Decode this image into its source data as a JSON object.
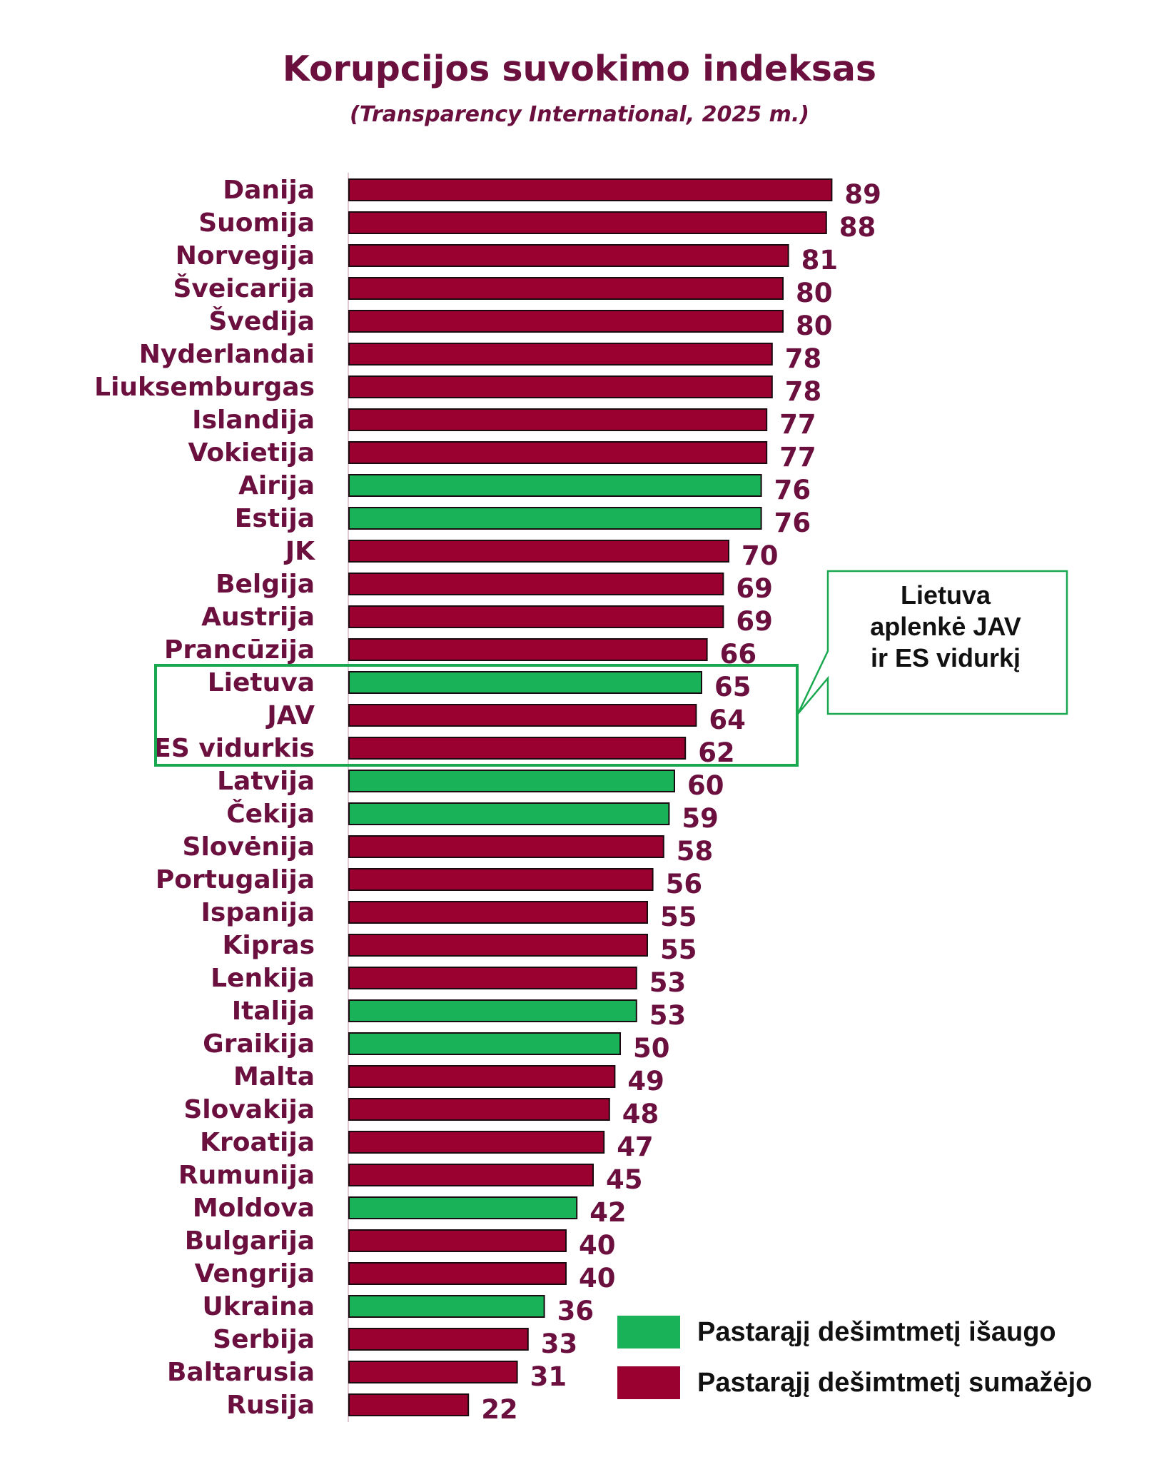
{
  "title": "Korupcijos suvokimo indeksas",
  "subtitle": "(Transparency International, 2025 m.)",
  "colors": {
    "increased": "#19b258",
    "decreased": "#9a0030",
    "text": "#6b0f3e",
    "highlight_border": "#19a84f"
  },
  "chart_data": {
    "type": "bar",
    "orientation": "horizontal",
    "title": "Korupcijos suvokimo indeksas",
    "subtitle": "(Transparency International, 2025 m.)",
    "xlabel": "",
    "ylabel": "",
    "xlim": [
      0,
      100
    ],
    "grid": false,
    "legend_position": "bottom-right",
    "categories": [
      "Danija",
      "Suomija",
      "Norvegija",
      "Šveicarija",
      "Švedija",
      "Nyderlandai",
      "Liuksemburgas",
      "Islandija",
      "Vokietija",
      "Airija",
      "Estija",
      "JK",
      "Belgija",
      "Austrija",
      "Prancūzija",
      "Lietuva",
      "JAV",
      "ES vidurkis",
      "Latvija",
      "Čekija",
      "Slovėnija",
      "Portugalija",
      "Ispanija",
      "Kipras",
      "Lenkija",
      "Italija",
      "Graikija",
      "Malta",
      "Slovakija",
      "Kroatija",
      "Rumunija",
      "Moldova",
      "Bulgarija",
      "Vengrija",
      "Ukraina",
      "Serbija",
      "Baltarusia",
      "Rusija"
    ],
    "values": [
      89,
      88,
      81,
      80,
      80,
      78,
      78,
      77,
      77,
      76,
      76,
      70,
      69,
      69,
      66,
      65,
      64,
      62,
      60,
      59,
      58,
      56,
      55,
      55,
      53,
      53,
      50,
      49,
      48,
      47,
      45,
      42,
      40,
      40,
      36,
      33,
      31,
      22
    ],
    "trend": [
      "decreased",
      "decreased",
      "decreased",
      "decreased",
      "decreased",
      "decreased",
      "decreased",
      "decreased",
      "decreased",
      "increased",
      "increased",
      "decreased",
      "decreased",
      "decreased",
      "decreased",
      "increased",
      "decreased",
      "decreased",
      "increased",
      "increased",
      "decreased",
      "decreased",
      "decreased",
      "decreased",
      "decreased",
      "increased",
      "increased",
      "decreased",
      "decreased",
      "decreased",
      "decreased",
      "increased",
      "decreased",
      "decreased",
      "increased",
      "decreased",
      "decreased",
      "decreased"
    ],
    "legend": [
      {
        "key": "increased",
        "label": "Pastarąjį dešimtmetį išaugo"
      },
      {
        "key": "decreased",
        "label": "Pastarąjį dešimtmetį sumažėjo"
      }
    ],
    "highlight": [
      "Lietuva",
      "JAV",
      "ES vidurkis"
    ],
    "annotation": "Lietuva aplenkė JAV ir ES vidurkį"
  },
  "callout": {
    "line1": "Lietuva",
    "line2": "aplenkė JAV",
    "line3": "ir ES vidurkį"
  },
  "legend": {
    "increased_label": "Pastarąjį dešimtmetį išaugo",
    "decreased_label": "Pastarąjį dešimtmetį sumažėjo"
  }
}
